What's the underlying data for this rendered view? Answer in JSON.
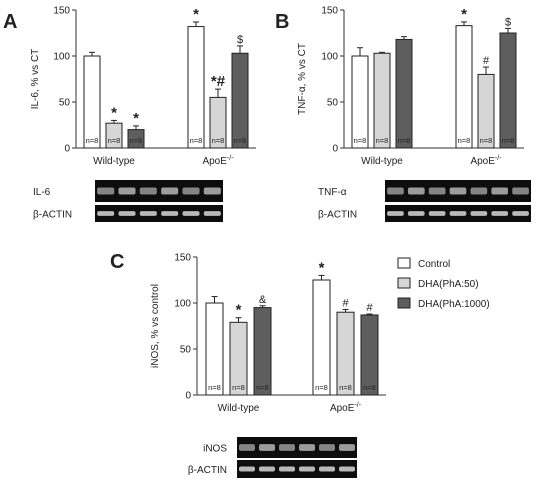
{
  "figure": {
    "panel_labels": [
      "A",
      "B",
      "C"
    ],
    "sample_size_label": "n=8",
    "significance_star": "*",
    "blots": {
      "A": [
        "IL-6",
        "β-ACTIN"
      ],
      "B": [
        "TNF-α",
        "β-ACTIN"
      ],
      "C": [
        "iNOS",
        "β-ACTIN"
      ]
    }
  },
  "colors": {
    "control": "#ffffff",
    "dha_50": "#d6d6d6",
    "dha_1000": "#5e5e5e",
    "outline": "#222222"
  },
  "chart_data": [
    {
      "panel": "A",
      "type": "bar",
      "ylabel": "IL-6, % vs CT",
      "ylim": [
        0,
        150
      ],
      "yticks": [
        0,
        50,
        100,
        150
      ],
      "groups": [
        "Wild-type",
        "ApoE-/-"
      ],
      "series": [
        {
          "name": "Control",
          "values": [
            100,
            132
          ],
          "errors": [
            4,
            5
          ],
          "annotations": [
            "",
            "*"
          ],
          "n": [
            "n=8",
            "n=8"
          ]
        },
        {
          "name": "DHA(PhA:50)",
          "values": [
            27,
            55
          ],
          "errors": [
            3,
            9
          ],
          "annotations": [
            "*",
            "*#"
          ],
          "n": [
            "n=8",
            "n=8"
          ]
        },
        {
          "name": "DHA(PhA:1000)",
          "values": [
            20,
            103
          ],
          "errors": [
            4,
            8
          ],
          "annotations": [
            "*",
            "$"
          ],
          "n": [
            "n=8",
            "n=8"
          ]
        }
      ]
    },
    {
      "panel": "B",
      "type": "bar",
      "ylabel": "TNF-α, % vs CT",
      "ylim": [
        0,
        150
      ],
      "yticks": [
        0,
        50,
        100,
        150
      ],
      "groups": [
        "Wild-type",
        "ApoE-/-"
      ],
      "series": [
        {
          "name": "Control",
          "values": [
            100,
            133
          ],
          "errors": [
            9,
            4
          ],
          "annotations": [
            "",
            "*"
          ],
          "n": [
            "n=8",
            "n=8"
          ]
        },
        {
          "name": "DHA(PhA:50)",
          "values": [
            103,
            80
          ],
          "errors": [
            1,
            8
          ],
          "annotations": [
            "",
            "#"
          ],
          "n": [
            "n=8",
            "n=8"
          ]
        },
        {
          "name": "DHA(PhA:1000)",
          "values": [
            118,
            125
          ],
          "errors": [
            3,
            5
          ],
          "annotations": [
            "",
            "$"
          ],
          "n": [
            "n=8",
            "n=8"
          ]
        }
      ]
    },
    {
      "panel": "C",
      "type": "bar",
      "ylabel": "iNOS, % vs control",
      "ylim": [
        0,
        150
      ],
      "yticks": [
        0,
        50,
        100,
        150
      ],
      "groups": [
        "Wild-type",
        "ApoE-/-"
      ],
      "legend": [
        "Control",
        "DHA(PhA:50)",
        "DHA(PhA:1000)"
      ],
      "series": [
        {
          "name": "Control",
          "values": [
            100,
            125
          ],
          "errors": [
            7,
            5
          ],
          "annotations": [
            "",
            "*"
          ],
          "n": [
            "n=8",
            "n=8"
          ]
        },
        {
          "name": "DHA(PhA:50)",
          "values": [
            79,
            90
          ],
          "errors": [
            5,
            3
          ],
          "annotations": [
            "*",
            "#"
          ],
          "n": [
            "n=8",
            "n=8"
          ]
        },
        {
          "name": "DHA(PhA:1000)",
          "values": [
            95,
            87
          ],
          "errors": [
            2,
            1
          ],
          "annotations": [
            "&",
            "#"
          ],
          "n": [
            "n=8",
            "n=8"
          ]
        }
      ]
    }
  ]
}
